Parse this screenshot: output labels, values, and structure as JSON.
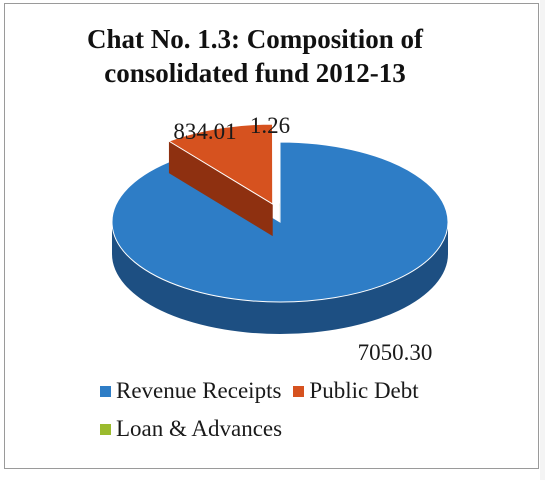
{
  "chart_data": {
    "type": "pie",
    "title": "Chat No. 1.3: Composition of consolidated fund 2012-13",
    "title_lines": [
      "Chat No. 1.3: Composition of",
      "consolidated fund 2012-13"
    ],
    "style": "3d-exploded",
    "legend_position": "bottom",
    "slices": [
      {
        "name": "Revenue Receipts",
        "value": 7050.3,
        "label": "7050.30",
        "color": "#2e7dc6",
        "dark": "#1d4f82",
        "explode": false
      },
      {
        "name": "Public Debt",
        "value": 834.01,
        "label": "834.01",
        "color": "#d6521f",
        "dark": "#8e3010",
        "explode": true
      },
      {
        "name": "Loan & Advances",
        "value": 1.26,
        "label": "1.26",
        "color": "#9bbb2e",
        "dark": "#5f7a18",
        "explode": true
      }
    ],
    "legend_rows": [
      [
        "Revenue Receipts",
        "Public Debt"
      ],
      [
        "Loan & Advances"
      ]
    ]
  }
}
